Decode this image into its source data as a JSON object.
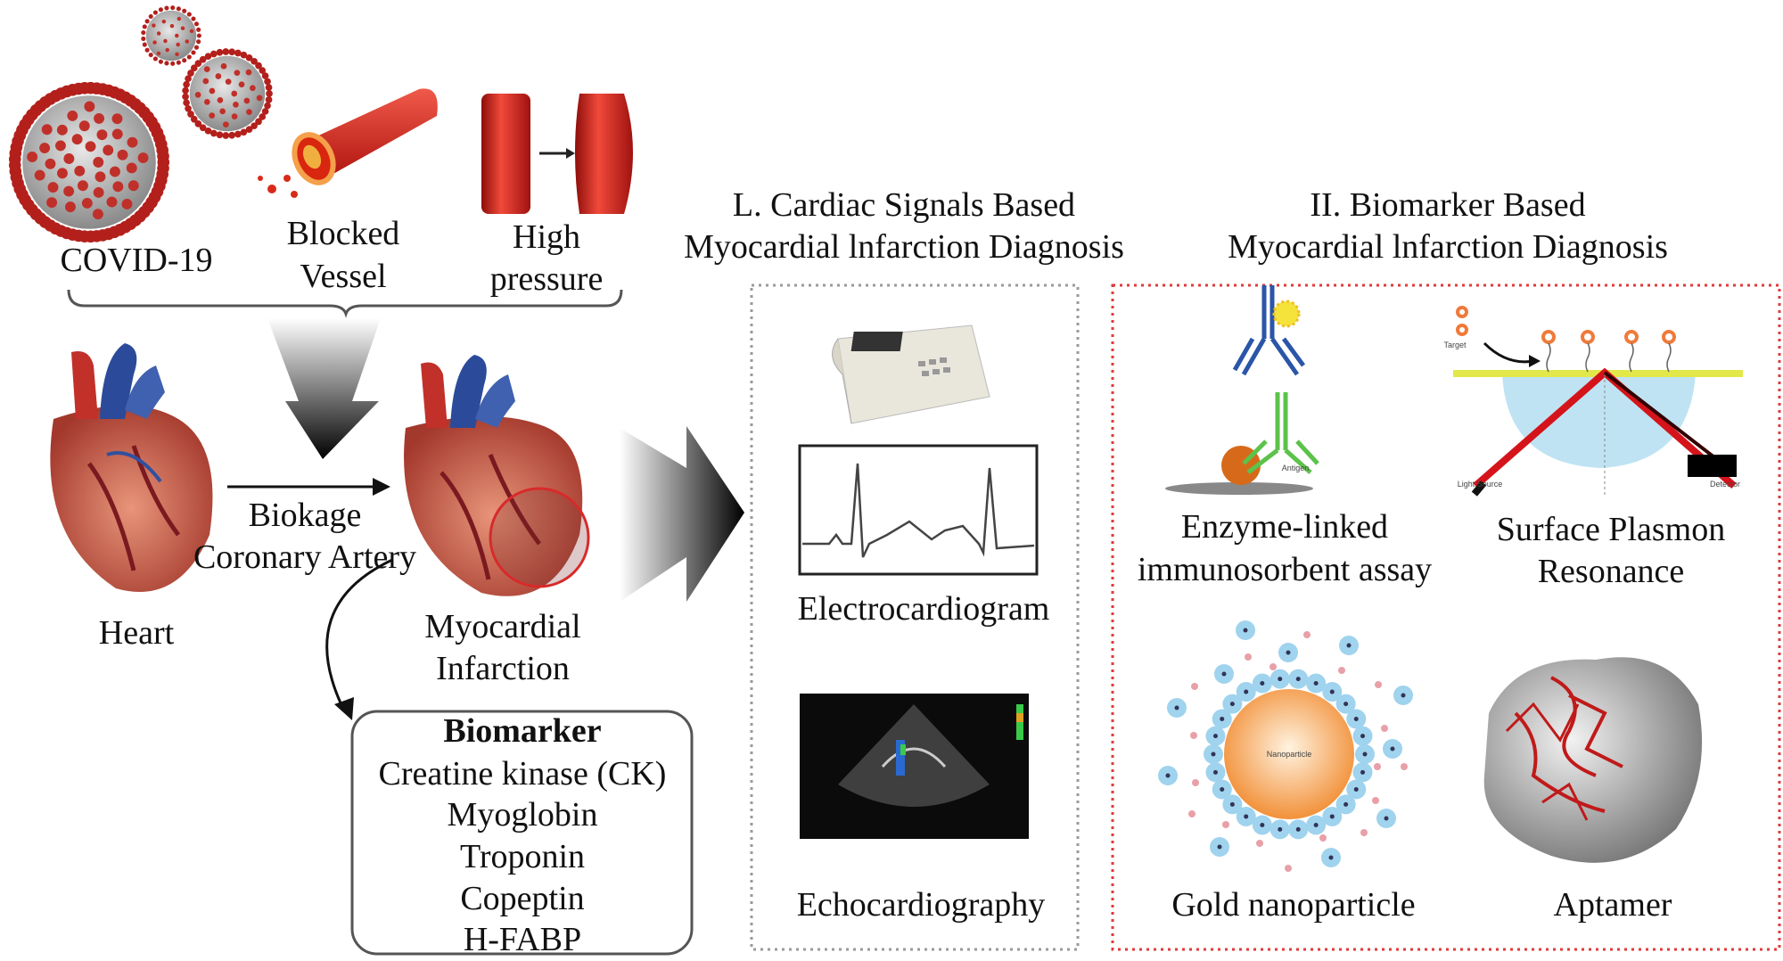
{
  "causes": {
    "covid": "COVID-19",
    "blocked_vessel": [
      "Blocked",
      "Vessel"
    ],
    "high_pressure": [
      "High",
      "pressure"
    ]
  },
  "heart_label": "Heart",
  "blockage_label": [
    "Biokage",
    "Coronary Artery"
  ],
  "mi_label": [
    "Myocardial",
    "Infarction"
  ],
  "biomarker_box": {
    "title": "Biomarker",
    "items": [
      "Creatine kinase (CK)",
      "Myoglobin",
      "Troponin",
      "Copeptin",
      "H-FABP"
    ]
  },
  "section1": {
    "title": [
      "L. Cardiac Signals Based",
      "Myocardial lnfarction Diagnosis"
    ],
    "methods": [
      "Electrocardiogram",
      "Echocardiography"
    ],
    "border_color": "#9a9a9a"
  },
  "section2": {
    "title": [
      "II. Biomarker Based",
      "Myocardial lnfarction Diagnosis"
    ],
    "methods": {
      "elisa": [
        "Enzyme-linked",
        "immunosorbent assay"
      ],
      "spr": [
        "Surface Plasmon",
        "Resonance"
      ],
      "gold": "Gold nanoparticle",
      "aptamer": "Aptamer"
    },
    "small_labels": {
      "antigen": "Antigen",
      "nanoparticle": "Nanoparticle",
      "target": "Target",
      "light_source": "Light Source",
      "detector": "Detector"
    },
    "border_color": "#e03a3a"
  }
}
